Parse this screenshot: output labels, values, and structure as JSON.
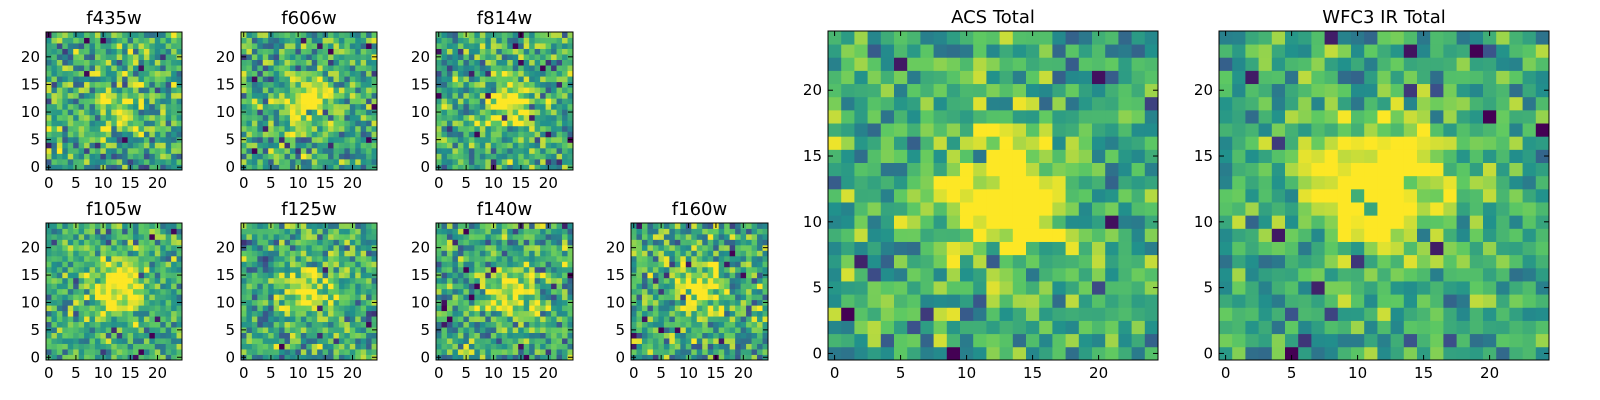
{
  "chart_data": {
    "type": "heatmap",
    "colormap": [
      "#440154",
      "#3b528b",
      "#21918c",
      "#5ec962",
      "#fde725"
    ],
    "grid_size": 25,
    "panels": [
      {
        "title": "f435w",
        "xticks": [
          0,
          5,
          10,
          15,
          20
        ],
        "yticks": [
          0,
          5,
          10,
          15,
          20
        ],
        "xlim": [
          0,
          25
        ],
        "ylim": [
          0,
          25
        ],
        "peak": [
          13,
          12
        ],
        "peak_strength": 0.25,
        "noise": 0.55,
        "seed": 11
      },
      {
        "title": "f606w",
        "xticks": [
          0,
          5,
          10,
          15,
          20
        ],
        "yticks": [
          0,
          5,
          10,
          15,
          20
        ],
        "xlim": [
          0,
          25
        ],
        "ylim": [
          0,
          25
        ],
        "peak": [
          12,
          12
        ],
        "peak_strength": 0.45,
        "noise": 0.5,
        "seed": 23
      },
      {
        "title": "f814w",
        "xticks": [
          0,
          5,
          10,
          15,
          20
        ],
        "yticks": [
          0,
          5,
          10,
          15,
          20
        ],
        "xlim": [
          0,
          25
        ],
        "ylim": [
          0,
          25
        ],
        "peak": [
          13,
          12
        ],
        "peak_strength": 0.4,
        "noise": 0.5,
        "seed": 37
      },
      {
        "title": "f105w",
        "xticks": [
          0,
          5,
          10,
          15,
          20
        ],
        "yticks": [
          0,
          5,
          10,
          15,
          20
        ],
        "xlim": [
          0,
          25
        ],
        "ylim": [
          0,
          25
        ],
        "peak": [
          13,
          13
        ],
        "peak_strength": 0.55,
        "noise": 0.45,
        "seed": 41
      },
      {
        "title": "f125w",
        "xticks": [
          0,
          5,
          10,
          15,
          20
        ],
        "yticks": [
          0,
          5,
          10,
          15,
          20
        ],
        "xlim": [
          0,
          25
        ],
        "ylim": [
          0,
          25
        ],
        "peak": [
          12,
          12
        ],
        "peak_strength": 0.35,
        "noise": 0.5,
        "seed": 53
      },
      {
        "title": "f140w",
        "xticks": [
          0,
          5,
          10,
          15,
          20
        ],
        "yticks": [
          0,
          5,
          10,
          15,
          20
        ],
        "xlim": [
          0,
          25
        ],
        "ylim": [
          0,
          25
        ],
        "peak": [
          13,
          12
        ],
        "peak_strength": 0.4,
        "noise": 0.5,
        "seed": 67
      },
      {
        "title": "f160w",
        "xticks": [
          0,
          5,
          10,
          15,
          20
        ],
        "yticks": [
          0,
          5,
          10,
          15,
          20
        ],
        "xlim": [
          0,
          25
        ],
        "ylim": [
          0,
          25
        ],
        "peak": [
          12,
          12
        ],
        "peak_strength": 0.35,
        "noise": 0.55,
        "seed": 79
      },
      {
        "title": "ACS Total",
        "xticks": [
          0,
          5,
          10,
          15,
          20
        ],
        "yticks": [
          0,
          5,
          10,
          15,
          20
        ],
        "xlim": [
          0,
          25
        ],
        "ylim": [
          0,
          25
        ],
        "peak": [
          13,
          12
        ],
        "peak_strength": 0.6,
        "noise": 0.45,
        "seed": 97
      },
      {
        "title": "WFC3 IR Total",
        "xticks": [
          0,
          5,
          10,
          15,
          20
        ],
        "yticks": [
          0,
          5,
          10,
          15,
          20
        ],
        "xlim": [
          0,
          25
        ],
        "ylim": [
          0,
          25
        ],
        "peak": [
          12,
          13
        ],
        "peak_strength": 0.7,
        "noise": 0.4,
        "seed": 113
      }
    ]
  }
}
